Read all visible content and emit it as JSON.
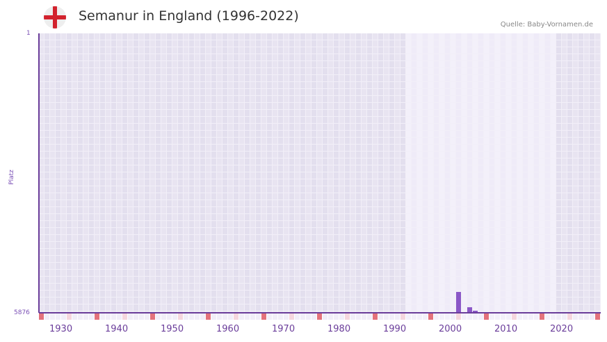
{
  "header": {
    "title": "Semanur in England (1996-2022)",
    "source": "Quelle: Baby-Vornamen.de",
    "flag_icon": "england-flag-icon"
  },
  "colors": {
    "accent": "#6a3d9a",
    "bar": "#8b58c7",
    "flag_red": "#d2222d",
    "decade_marker": "#e3727c",
    "half_decade_marker": "#f5d6de",
    "bg_dark_a": "#e3dfee",
    "bg_dark_b": "#e8e4f1",
    "bg_light_a": "#efebf8",
    "bg_light_b": "#f3f0fa"
  },
  "chart_data": {
    "type": "bar",
    "title": "Semanur in England (1996-2022)",
    "xlabel": "",
    "ylabel": "Platz",
    "ylim": [
      5876,
      1
    ],
    "y_ticks": [
      "1",
      "5876"
    ],
    "x_range": [
      1928,
      2028
    ],
    "x_ticks": [
      "1930",
      "1940",
      "1950",
      "1960",
      "1970",
      "1980",
      "1990",
      "2000",
      "2010",
      "2020"
    ],
    "highlight_range": [
      1994,
      2020
    ],
    "grid": true,
    "legend": "none",
    "series": [
      {
        "name": "Platz",
        "x": [
          2003,
          2005,
          2006
        ],
        "values": [
          5440,
          5760,
          5830
        ]
      }
    ],
    "source": "Quelle: Baby-Vornamen.de"
  }
}
